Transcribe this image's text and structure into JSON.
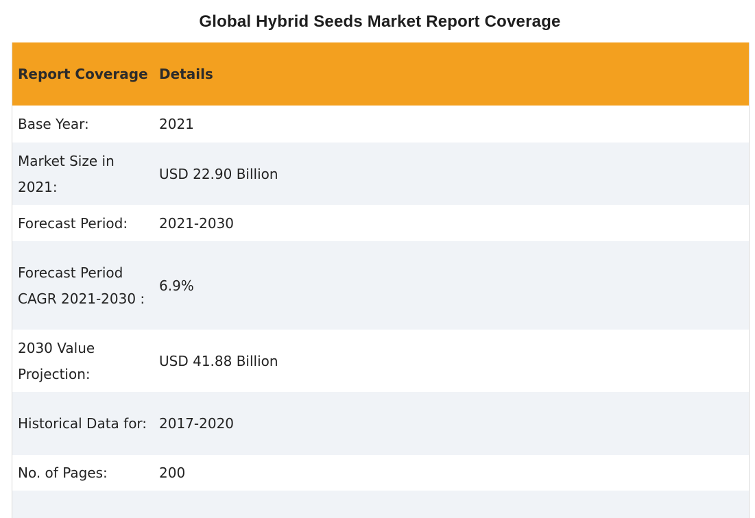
{
  "page": {
    "title": "Global Hybrid Seeds Market Report Coverage"
  },
  "table": {
    "headers": [
      "Report Coverage",
      "Details"
    ],
    "rows": [
      {
        "label": "Base Year:",
        "value": "2021"
      },
      {
        "label": "Market Size in 2021:",
        "value": "USD 22.90 Billion"
      },
      {
        "label": "Forecast Period:",
        "value": "2021-2030"
      },
      {
        "label": "Forecast Period CAGR 2021-2030 :",
        "value": "6.9%"
      },
      {
        "label": "2030 Value Projection:",
        "value": "USD 41.88 Billion"
      },
      {
        "label": "Historical Data for:",
        "value": "2017-2020"
      },
      {
        "label": "No. of Pages:",
        "value": "200"
      },
      {
        "label": "",
        "value": ""
      }
    ]
  },
  "colors": {
    "header_background": "#f3a01f",
    "row_alt_background": "#f0f3f7",
    "row_background": "#ffffff"
  }
}
